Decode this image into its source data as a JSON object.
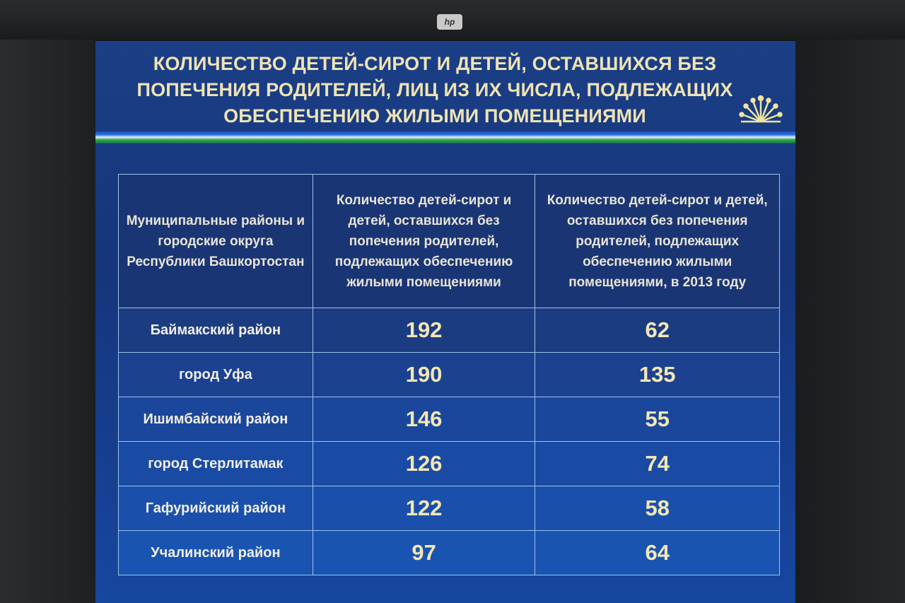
{
  "monitor": {
    "brand_logo": "hp"
  },
  "slide": {
    "title": "КОЛИЧЕСТВО ДЕТЕЙ-СИРОТ И ДЕТЕЙ, ОСТАВШИХСЯ БЕЗ ПОПЕЧЕНИЯ РОДИТЕЛЕЙ, ЛИЦ ИЗ ИХ ЧИСЛА, ПОДЛЕЖАЩИХ ОБЕСПЕЧЕНИЮ ЖИЛЫМИ ПОМЕЩЕНИЯМИ",
    "emblem": "bashkortostan-kurai-flower-emblem",
    "colors": {
      "background": "#1a3f88",
      "text": "#f0e6c4",
      "stripe_blue": "#2a6de0",
      "stripe_white": "#e8f2ff",
      "stripe_green": "#2ea84e"
    }
  },
  "table": {
    "headers": [
      "Муниципальные районы и городские округа Республики Башкортостан",
      "Количество детей-сирот и детей, оставшихся без попечения родителей, подлежащих обеспечению жилыми помещениями",
      "Количество детей-сирот и детей, оставшихся без попечения родителей, подлежащих обеспечению жилыми помещениями, в 2013 году"
    ],
    "rows": [
      {
        "name": "Баймакский район",
        "total": "192",
        "in_2013": "62"
      },
      {
        "name": "город Уфа",
        "total": "190",
        "in_2013": "135"
      },
      {
        "name": "Ишимбайский район",
        "total": "146",
        "in_2013": "55"
      },
      {
        "name": "город Стерлитамак",
        "total": "126",
        "in_2013": "74"
      },
      {
        "name": "Гафурийский район",
        "total": "122",
        "in_2013": "58"
      },
      {
        "name": "Учалинский район",
        "total": "97",
        "in_2013": "64"
      }
    ]
  }
}
